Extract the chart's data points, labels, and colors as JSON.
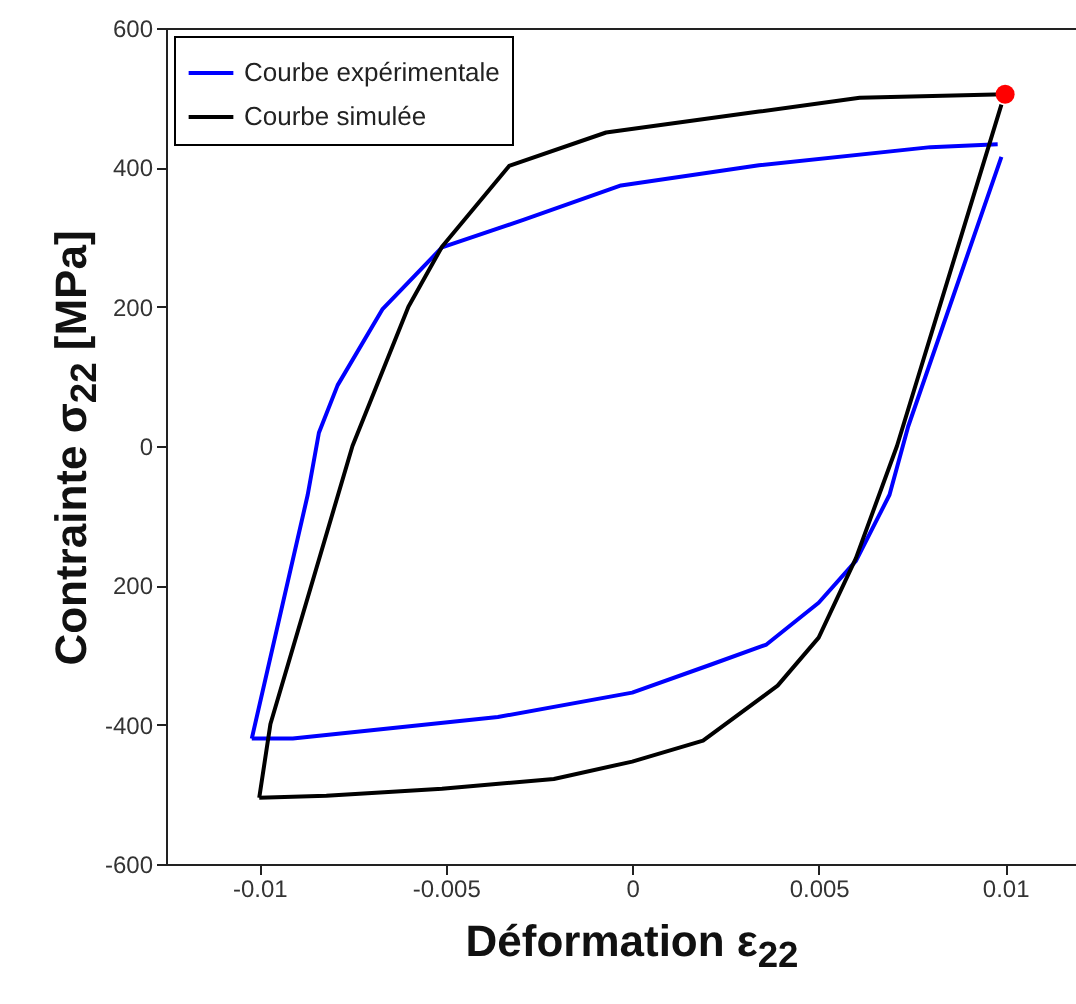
{
  "chart_data": {
    "type": "line",
    "xlabel": "Déformation ε$_{22}$",
    "ylabel": "Contrainte σ$_{22}$ [MPa]",
    "xlim": [
      -0.0125,
      0.0119
    ],
    "ylim": [
      -600,
      600
    ],
    "xticks": [
      -0.01,
      -0.005,
      0,
      0.005,
      0.01
    ],
    "yticks": [
      -600,
      -400,
      {
        "value": -200,
        "label": "200"
      },
      0,
      200,
      400,
      600
    ],
    "legend": "top left",
    "grid": false,
    "series": [
      {
        "name": "Courbe expérimentale",
        "color": "#0000ff",
        "x": [
          0.0099,
          0.0074,
          0.0069,
          0.006,
          0.005,
          0.0036,
          0.0021,
          0,
          -0.0036,
          -0.0091,
          -0.0102
        ],
        "values": [
          415,
          28,
          -70,
          -165,
          -225,
          -285,
          -314,
          -354,
          -389,
          -420,
          -420
        ]
      },
      {
        "color": "#0000ff",
        "x": [
          -0.0102,
          -0.0087,
          -0.0084,
          -0.0079,
          -0.0067,
          -0.0051,
          -0.0029,
          -0.0003,
          0.0034,
          0.008,
          0.0098
        ],
        "values": [
          -420,
          -70,
          19,
          87,
          196,
          285,
          325,
          374,
          403,
          429,
          433
        ]
      },
      {
        "name": "Courbe simulée",
        "color": "#000000",
        "x": [
          -0.01,
          -0.0097,
          -0.0075,
          -0.006,
          -0.0051,
          -0.0033,
          -0.0007,
          0.0034,
          0.0061,
          0.01
        ],
        "values": [
          -505,
          -399,
          0,
          200,
          286,
          402,
          450,
          480,
          500,
          505
        ]
      },
      {
        "color": "#000000",
        "x": [
          0.0099,
          0.0071,
          0.006,
          0.005,
          0.0039,
          0.0019,
          0,
          -0.0021,
          -0.0051,
          -0.0082,
          -0.01
        ],
        "values": [
          490,
          0,
          -161,
          -275,
          -344,
          -423,
          -453,
          -478,
          -492,
          -502,
          -505
        ]
      },
      {
        "type": "scatter",
        "color": "#ff0000",
        "x": [
          0.01
        ],
        "values": [
          505
        ]
      }
    ]
  }
}
